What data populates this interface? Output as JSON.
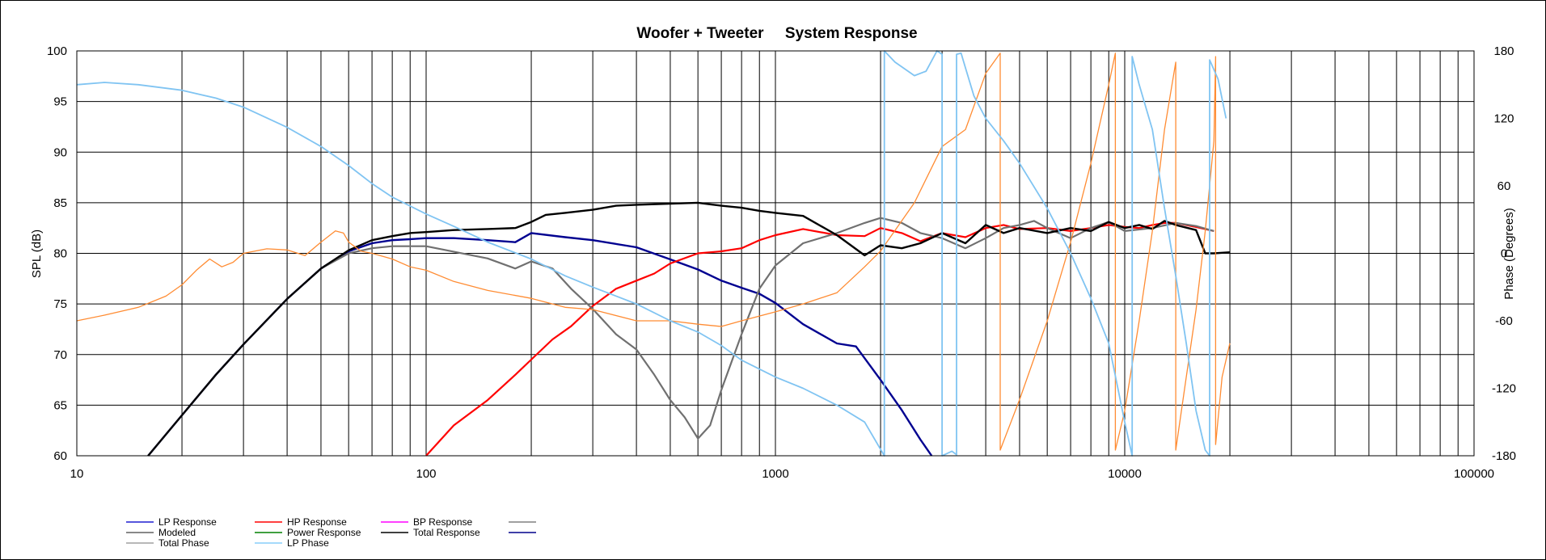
{
  "chart_data": {
    "type": "line",
    "title": "Woofer + Tweeter     System Response",
    "ylabel": "SPL (dB)",
    "y2label": "Phase (Degrees)",
    "xscale": "log",
    "xlim": [
      10,
      100000
    ],
    "ylim": [
      60,
      100
    ],
    "y2lim": [
      -180,
      180
    ],
    "grid": true,
    "x_ticks": [
      "10",
      "100",
      "1000",
      "10000",
      "100000"
    ],
    "y_ticks": [
      "60",
      "65",
      "70",
      "75",
      "80",
      "85",
      "90",
      "95",
      "100"
    ],
    "y2_ticks": [
      "-180",
      "-120",
      "-60",
      "0",
      "60",
      "120",
      "180"
    ],
    "legend_position": "bottom-left",
    "legend": [
      {
        "label": "LP Response",
        "color": "#1f1fd0"
      },
      {
        "label": "HP Response",
        "color": "#ff0000"
      },
      {
        "label": "BP Response",
        "color": "#ff00ff"
      },
      {
        "label": "",
        "color": "#808080"
      },
      {
        "label": "Modeled",
        "color": "#606060"
      },
      {
        "label": "Power Response",
        "color": "#008000"
      },
      {
        "label": "Total Response",
        "color": "#000000"
      },
      {
        "label": "",
        "color": "#00008b"
      },
      {
        "label": "Total Phase",
        "color": "#a0a0a0"
      },
      {
        "label": "LP Phase",
        "color": "#87cefa"
      }
    ],
    "series": [
      {
        "key": "lp",
        "axis": "left",
        "color": "#000090",
        "width": 2.4,
        "x": [
          16,
          20,
          25,
          30,
          40,
          50,
          60,
          70,
          80,
          90,
          100,
          120,
          150,
          180,
          200,
          250,
          300,
          400,
          500,
          600,
          700,
          800,
          900,
          1000,
          1200,
          1500,
          1700,
          2000,
          2300,
          2600,
          2800
        ],
        "y": [
          60,
          64,
          68,
          71,
          75.5,
          78.5,
          80.2,
          81,
          81.3,
          81.4,
          81.5,
          81.5,
          81.3,
          81.1,
          82,
          81.6,
          81.3,
          80.6,
          79.4,
          78.4,
          77.3,
          76.6,
          76,
          75.1,
          73,
          71.1,
          70.8,
          67.5,
          64.5,
          61.6,
          60
        ]
      },
      {
        "key": "hp",
        "axis": "left",
        "color": "#ff0000",
        "width": 2.2,
        "x": [
          100,
          120,
          150,
          180,
          200,
          230,
          260,
          300,
          350,
          400,
          450,
          500,
          600,
          700,
          800,
          900,
          1000,
          1200,
          1500,
          1800,
          2000,
          2300,
          2600,
          3000,
          3500,
          4000,
          4500,
          5000,
          6000,
          7000,
          8000,
          9000,
          10000,
          11000,
          12000,
          13000,
          14000,
          16000,
          18000
        ],
        "y": [
          60,
          63,
          65.5,
          68,
          69.5,
          71.5,
          72.8,
          74.8,
          76.5,
          77.3,
          78,
          79,
          80,
          80.2,
          80.5,
          81.3,
          81.8,
          82.4,
          81.8,
          81.7,
          82.5,
          82,
          81.2,
          82,
          81.6,
          82.5,
          82.8,
          82.4,
          82.5,
          82.2,
          82.5,
          82.8,
          82.6,
          82.5,
          82.8,
          83,
          83,
          82.6,
          82.2
        ]
      },
      {
        "key": "model",
        "axis": "left",
        "color": "#707070",
        "width": 2.2,
        "x": [
          50,
          60,
          70,
          80,
          100,
          150,
          180,
          200,
          230,
          260,
          300,
          350,
          400,
          450,
          500,
          550,
          600,
          650,
          700,
          800,
          900,
          1000,
          1200,
          1500,
          1800,
          2000,
          2300,
          2600,
          3000,
          3500,
          4000,
          4500,
          5000,
          5500,
          6000,
          7000,
          8000,
          9000,
          10000,
          12000,
          14000,
          16000,
          18000
        ],
        "y": [
          78.5,
          80,
          80.5,
          80.7,
          80.7,
          79.5,
          78.5,
          79.2,
          78.5,
          76.5,
          74.5,
          72,
          70.5,
          68,
          65.5,
          63.8,
          61.7,
          63,
          66.5,
          72,
          76.5,
          78.8,
          81,
          82,
          83,
          83.5,
          83,
          82,
          81.5,
          80.5,
          81.5,
          82.5,
          82.8,
          83.2,
          82.5,
          81.5,
          82.5,
          83.1,
          82.2,
          82.5,
          83,
          82.7,
          82.2
        ]
      },
      {
        "key": "total",
        "axis": "left",
        "color": "#000000",
        "width": 2.4,
        "x": [
          16,
          20,
          25,
          30,
          40,
          50,
          60,
          70,
          80,
          90,
          100,
          120,
          150,
          180,
          200,
          220,
          250,
          300,
          350,
          400,
          500,
          600,
          700,
          800,
          900,
          1000,
          1200,
          1500,
          1800,
          2000,
          2300,
          2600,
          3000,
          3500,
          4000,
          4500,
          5000,
          6000,
          7000,
          8000,
          9000,
          10000,
          11000,
          12000,
          13000,
          14000,
          16000,
          17000,
          18000,
          20000
        ],
        "y": [
          60,
          64,
          68,
          71,
          75.5,
          78.5,
          80.3,
          81.3,
          81.7,
          82,
          82.1,
          82.3,
          82.4,
          82.5,
          83.1,
          83.8,
          84,
          84.3,
          84.7,
          84.8,
          84.9,
          85,
          84.7,
          84.5,
          84.2,
          84,
          83.7,
          81.8,
          79.8,
          80.8,
          80.5,
          81,
          82,
          81,
          82.8,
          82,
          82.5,
          82,
          82.5,
          82.2,
          83.1,
          82.5,
          82.8,
          82.4,
          83.2,
          82.8,
          82.3,
          80,
          80,
          80.1
        ]
      },
      {
        "key": "hpphase",
        "axis": "right",
        "color": "#ff8c33",
        "width": 1.3,
        "x": [
          10,
          12,
          15,
          18,
          20,
          22,
          24,
          26,
          28,
          30,
          35,
          40,
          45,
          50,
          55,
          58,
          60,
          65,
          70,
          80,
          90,
          100,
          120,
          150,
          200,
          250,
          300,
          400,
          500,
          600,
          700,
          800,
          1000,
          1200,
          1500,
          1800,
          2000,
          2500,
          3000,
          3500,
          4000,
          4400,
          4400,
          5000,
          6000,
          7000,
          8000,
          9000,
          9400,
          9400,
          10000,
          11000,
          12000,
          13000,
          14000,
          14000,
          15000,
          16000,
          17000,
          18000,
          18200,
          18200,
          19000,
          20000
        ],
        "y": [
          -60,
          -55,
          -48,
          -38,
          -28,
          -15,
          -5,
          -12,
          -8,
          0,
          4,
          3,
          -2,
          10,
          20,
          18,
          10,
          2,
          0,
          -5,
          -12,
          -15,
          -25,
          -33,
          -40,
          -48,
          -50,
          -60,
          -60,
          -63,
          -65,
          -60,
          -52,
          -45,
          -35,
          -12,
          2,
          45,
          95,
          110,
          160,
          178,
          -175,
          -130,
          -60,
          10,
          80,
          150,
          178,
          -175,
          -140,
          -60,
          20,
          110,
          170,
          -175,
          -110,
          -50,
          20,
          100,
          175,
          -170,
          -110,
          -80
        ]
      },
      {
        "key": "lpphase",
        "axis": "right",
        "color": "#80c4f2",
        "width": 1.8,
        "x": [
          10,
          12,
          15,
          20,
          25,
          30,
          40,
          50,
          60,
          70,
          80,
          100,
          120,
          150,
          200,
          250,
          300,
          400,
          500,
          600,
          700,
          800,
          1000,
          1200,
          1500,
          1800,
          2050,
          2050,
          2200,
          2500,
          2700,
          2900,
          3000,
          3000,
          3100,
          3200,
          3300,
          3300,
          3400,
          3500,
          3700,
          4000,
          4500,
          5000,
          6000,
          7000,
          8000,
          9000,
          10000,
          10500,
          10500,
          11000,
          12000,
          13000,
          14000,
          15000,
          16000,
          17000,
          17500,
          17500,
          18500,
          19500
        ],
        "y": [
          150,
          152,
          150,
          145,
          138,
          130,
          112,
          95,
          78,
          62,
          50,
          35,
          24,
          10,
          -5,
          -20,
          -30,
          -45,
          -60,
          -70,
          -82,
          -95,
          -110,
          -120,
          -135,
          -150,
          -180,
          180,
          170,
          158,
          162,
          180,
          177,
          -180,
          -178,
          -176,
          -179,
          177,
          178,
          165,
          140,
          120,
          100,
          80,
          40,
          0,
          -40,
          -80,
          -150,
          -180,
          175,
          150,
          110,
          40,
          -20,
          -80,
          -140,
          -175,
          -180,
          172,
          155,
          120
        ]
      }
    ]
  }
}
